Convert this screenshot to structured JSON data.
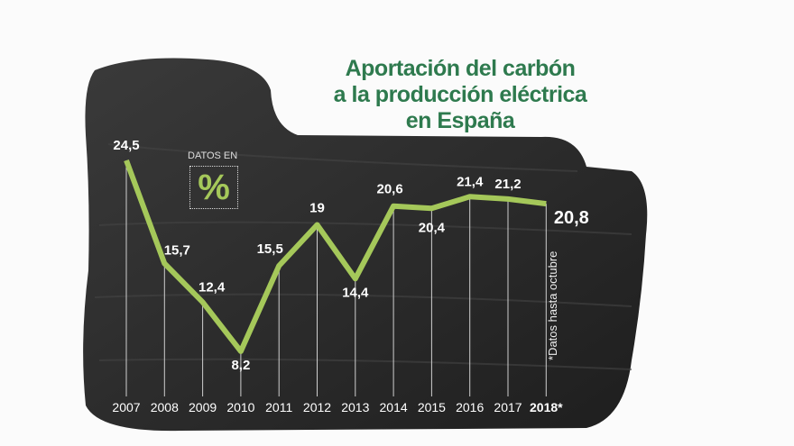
{
  "chart_data": {
    "type": "line",
    "title": "Aportación del carbón a la producción eléctrica en España",
    "title_lines": [
      "Aportación del carbón",
      "a la producción eléctrica",
      "en España"
    ],
    "unit_label": "DATOS EN",
    "unit_symbol": "%",
    "footnote": "*Datos hasta octubre",
    "categories": [
      "2007",
      "2008",
      "2009",
      "2010",
      "2011",
      "2012",
      "2013",
      "2014",
      "2015",
      "2016",
      "2017",
      "2018*"
    ],
    "values": [
      24.5,
      15.7,
      12.4,
      8.2,
      15.5,
      19,
      14.4,
      20.6,
      20.4,
      21.4,
      21.2,
      20.8
    ],
    "data_labels": [
      "24,5",
      "15,7",
      "12,4",
      "8,2",
      "15,5",
      "19",
      "14,4",
      "20,6",
      "20,4",
      "21,4",
      "21,2",
      "20,8"
    ],
    "line_color": "#a5c85a",
    "title_color": "#2e7a4e"
  }
}
